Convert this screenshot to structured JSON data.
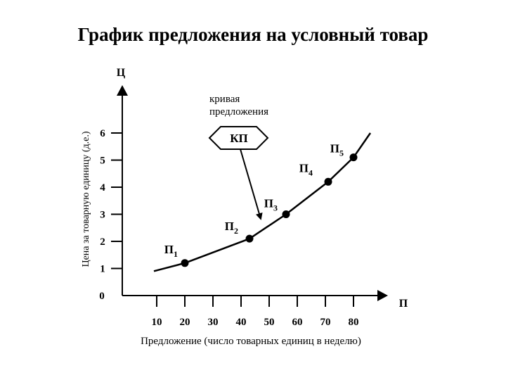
{
  "chart_data": {
    "type": "line",
    "title": "График предложения на условный товар",
    "ylabel": "Цена за товарную единицу (д.е.)",
    "xlabel": "Предложение (число товарных единиц в неделю)",
    "y_axis_letter": "Ц",
    "x_axis_letter": "П",
    "origin_label": "0",
    "x_ticks": [
      10,
      20,
      30,
      40,
      50,
      60,
      70,
      80
    ],
    "y_ticks": [
      1,
      2,
      3,
      4,
      5,
      6
    ],
    "xlim": [
      0,
      90
    ],
    "ylim": [
      0,
      7
    ],
    "curve": {
      "name": "КП",
      "annotation": [
        "кривая",
        "предложения"
      ],
      "x": [
        9,
        20,
        43,
        56,
        71,
        80,
        86
      ],
      "y": [
        0.9,
        1.2,
        2.1,
        3.0,
        4.2,
        5.1,
        6.0
      ]
    },
    "points": [
      {
        "base": "П",
        "sub": "1",
        "x": 20,
        "y": 1.2
      },
      {
        "base": "П",
        "sub": "2",
        "x": 43,
        "y": 2.1
      },
      {
        "base": "П",
        "sub": "3",
        "x": 56,
        "y": 3.0
      },
      {
        "base": "П",
        "sub": "4",
        "x": 71,
        "y": 4.2
      },
      {
        "base": "П",
        "sub": "5",
        "x": 80,
        "y": 5.1
      }
    ],
    "grid": false,
    "legend": "none"
  }
}
